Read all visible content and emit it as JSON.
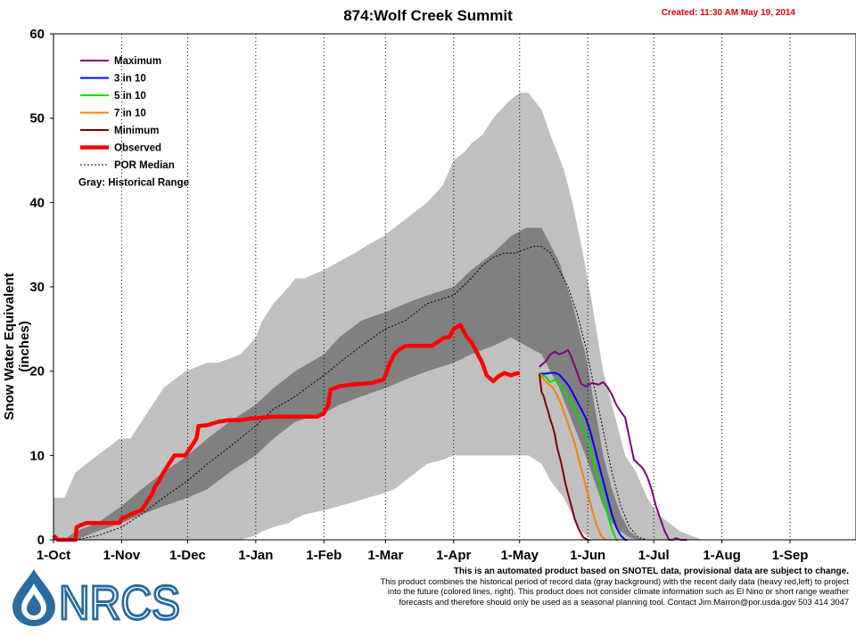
{
  "chart_data": {
    "type": "line",
    "title": "874:Wolf Creek Summit",
    "created": "Created: 11:30 AM May 19, 2014",
    "ylabel": "Snow Water Equivalent (inches)",
    "xlabel": "",
    "ylim": [
      0,
      60
    ],
    "yticks": [
      0,
      10,
      20,
      30,
      40,
      50,
      60
    ],
    "x_unit": "day of water year (1-Oct = 0)",
    "xlim": [
      0,
      365
    ],
    "xticks": [
      {
        "label": "1-Oct",
        "day": 0
      },
      {
        "label": "1-Nov",
        "day": 31
      },
      {
        "label": "1-Dec",
        "day": 61
      },
      {
        "label": "1-Jan",
        "day": 92
      },
      {
        "label": "1-Feb",
        "day": 123
      },
      {
        "label": "1-Mar",
        "day": 151
      },
      {
        "label": "1-Apr",
        "day": 182
      },
      {
        "label": "1-May",
        "day": 212
      },
      {
        "label": "1-Jun",
        "day": 243
      },
      {
        "label": "1-Jul",
        "day": 273
      },
      {
        "label": "1-Aug",
        "day": 304
      },
      {
        "label": "1-Sep",
        "day": 335
      }
    ],
    "grid": "vertical dotted at month starts",
    "legend_position": "top-left",
    "legend": [
      {
        "name": "Maximum",
        "color": "#800080",
        "style": "line"
      },
      {
        "name": "3 in 10",
        "color": "#0000ff",
        "style": "line"
      },
      {
        "name": "5 in 10",
        "color": "#00e000",
        "style": "line"
      },
      {
        "name": "7 in 10",
        "color": "#ff8000",
        "style": "line"
      },
      {
        "name": "Minimum",
        "color": "#800000",
        "style": "line"
      },
      {
        "name": "Observed",
        "color": "#ff0000",
        "style": "thick"
      },
      {
        "name": "POR Median",
        "color": "#000000",
        "style": "dotted"
      }
    ],
    "legend_note": "Gray: Historical Range",
    "range_outer": {
      "color": "#c0c0c0",
      "x": [
        0,
        5,
        10,
        20,
        30,
        35,
        45,
        50,
        60,
        70,
        75,
        85,
        92,
        95,
        100,
        107,
        110,
        114,
        123,
        130,
        137,
        143,
        150,
        155,
        160,
        165,
        170,
        177,
        182,
        187,
        190,
        195,
        200,
        207,
        212,
        216,
        222,
        226,
        232,
        236,
        240,
        245,
        250,
        255,
        260,
        265,
        270,
        275,
        280,
        285,
        290,
        295,
        300,
        303,
        306
      ],
      "lower": [
        0,
        0,
        0,
        0,
        0,
        0,
        0,
        0,
        0,
        0,
        0,
        0,
        0.5,
        1,
        1.5,
        2,
        2.5,
        3,
        3.5,
        4,
        4.5,
        5,
        5.5,
        6,
        7,
        8,
        9,
        9.5,
        10,
        10,
        10,
        10,
        10,
        10,
        10,
        10,
        9,
        7,
        5,
        3,
        1,
        0,
        0,
        0,
        0,
        0,
        0,
        0,
        0,
        0,
        0,
        0,
        0,
        0,
        0
      ],
      "upper": [
        5,
        5,
        8,
        10,
        12,
        12,
        16,
        18,
        20,
        21,
        21,
        22,
        24,
        26,
        28,
        30,
        31,
        31,
        32,
        33,
        34,
        35,
        36,
        37,
        38,
        39,
        40,
        42,
        45,
        46,
        47,
        48,
        50,
        52,
        53,
        53,
        51,
        48,
        44,
        40,
        35,
        28,
        20,
        15,
        10,
        8,
        5,
        3,
        2,
        1,
        0.5,
        0,
        0,
        0,
        0
      ]
    },
    "range_inner": {
      "color": "#808080",
      "x": [
        5,
        10,
        20,
        31,
        40,
        50,
        61,
        70,
        80,
        92,
        100,
        110,
        123,
        130,
        140,
        151,
        160,
        170,
        182,
        190,
        200,
        208,
        215,
        222,
        230,
        236,
        242,
        246,
        250,
        254,
        258,
        262,
        266,
        270
      ],
      "lower": [
        0,
        0,
        1,
        2,
        3,
        4,
        5,
        6,
        8,
        10,
        12,
        14,
        15,
        16,
        17,
        18,
        19,
        20,
        21,
        22,
        23,
        24,
        23,
        22,
        18,
        14,
        10,
        7,
        4,
        2,
        1,
        0.3,
        0,
        0
      ],
      "upper": [
        0,
        1,
        2,
        4,
        6,
        8,
        10,
        12,
        14,
        16,
        18,
        20,
        22,
        24,
        26,
        27,
        28,
        29,
        30,
        32,
        34,
        36,
        37,
        37,
        33,
        28,
        22,
        16,
        10,
        6,
        3,
        1,
        0.2,
        0
      ]
    },
    "series": [
      {
        "name": "Maximum",
        "color": "#800080",
        "x": [
          221,
          224,
          226,
          228,
          230,
          232,
          234,
          235,
          238,
          240,
          242,
          245,
          248,
          250,
          252,
          254,
          256,
          258,
          260,
          262,
          264,
          266,
          268,
          270,
          272,
          274,
          276,
          278,
          280,
          282,
          283,
          285,
          288
        ],
        "y": [
          20.5,
          21.2,
          22,
          22.3,
          22,
          22.2,
          22.5,
          22,
          20,
          18.5,
          18.2,
          18.6,
          18.4,
          18.7,
          18.1,
          17.2,
          16,
          15.2,
          14.5,
          12,
          9.5,
          9,
          8.5,
          7.5,
          6,
          4,
          2.5,
          1,
          0,
          0,
          0.2,
          0,
          0
        ]
      },
      {
        "name": "3 in 10",
        "color": "#0000ff",
        "x": [
          221,
          224,
          226,
          228,
          230,
          232,
          234,
          236,
          238,
          240,
          242,
          244,
          246,
          248,
          250,
          252,
          254,
          256,
          258,
          260,
          261
        ],
        "y": [
          19.7,
          19.7,
          19.8,
          19.8,
          19.6,
          19,
          18.4,
          17.5,
          16.5,
          15.5,
          14.5,
          13,
          11,
          9,
          7,
          5,
          3,
          1.5,
          0.5,
          0,
          0
        ]
      },
      {
        "name": "5 in 10",
        "color": "#00e000",
        "x": [
          221,
          224,
          226,
          228,
          230,
          232,
          234,
          236,
          238,
          240,
          242,
          244,
          246,
          248,
          250,
          252,
          254,
          256,
          257
        ],
        "y": [
          19.7,
          19.3,
          18.7,
          19,
          18.5,
          17.8,
          17,
          16,
          15,
          13.8,
          12.5,
          11,
          9,
          7,
          5,
          3,
          1.3,
          0,
          0
        ]
      },
      {
        "name": "7 in 10",
        "color": "#ff8000",
        "x": [
          221,
          223,
          225,
          227,
          229,
          231,
          233,
          235,
          237,
          239,
          241,
          243,
          245,
          247,
          249,
          251
        ],
        "y": [
          19.7,
          19,
          18.5,
          18.1,
          17.2,
          16,
          14.5,
          13,
          11.5,
          9.5,
          7.5,
          5.5,
          3.5,
          1.8,
          0.5,
          0
        ]
      },
      {
        "name": "Minimum",
        "color": "#800000",
        "x": [
          221,
          222,
          223,
          224,
          225,
          226,
          227,
          228,
          229,
          231,
          233,
          235,
          237,
          239,
          241,
          243,
          244
        ],
        "y": [
          19.7,
          17.5,
          17,
          16,
          15.2,
          14.2,
          13.5,
          12.5,
          11,
          9,
          6.5,
          4.5,
          2.5,
          1.2,
          0.3,
          0,
          0
        ]
      },
      {
        "name": "POR Median",
        "color": "#000000",
        "x": [
          10,
          20,
          31,
          40,
          50,
          61,
          70,
          80,
          92,
          100,
          110,
          115,
          123,
          130,
          140,
          151,
          160,
          170,
          182,
          190,
          195,
          200,
          205,
          210,
          215,
          218,
          222,
          226,
          230,
          234,
          238,
          242,
          246,
          250,
          254,
          258,
          262,
          266,
          270
        ],
        "y": [
          0,
          0.5,
          1.5,
          3,
          5,
          7,
          9,
          11,
          13.5,
          15.5,
          17,
          18,
          19.5,
          21,
          23,
          25,
          26,
          28,
          29,
          31,
          32.5,
          33.5,
          34,
          34,
          34.5,
          34.8,
          34.8,
          34,
          32,
          30,
          27,
          23,
          18,
          13,
          8,
          4,
          1.5,
          0.3,
          0
        ]
      },
      {
        "name": "Observed",
        "color": "#ff0000",
        "x": [
          0,
          2,
          5,
          10,
          10.5,
          12,
          15,
          20,
          25,
          30,
          31,
          35,
          40,
          45,
          46,
          48,
          50,
          55,
          60,
          65,
          66,
          70,
          75,
          80,
          85,
          90,
          92,
          95,
          100,
          110,
          115,
          120,
          123,
          125,
          126,
          130,
          135,
          140,
          145,
          150,
          151,
          153,
          155,
          157,
          160,
          165,
          170,
          172,
          175,
          178,
          180,
          182,
          185,
          188,
          190,
          193,
          195,
          197,
          200,
          202,
          205,
          208,
          210,
          212
        ],
        "y": [
          0.5,
          0,
          0,
          0,
          1.5,
          1.7,
          2,
          2,
          2,
          2,
          2.5,
          3,
          3.5,
          5.5,
          6.2,
          7,
          8,
          10,
          10,
          12,
          13.5,
          13.6,
          14,
          14.2,
          14.2,
          14.4,
          14.4,
          14.5,
          14.6,
          14.6,
          14.6,
          14.6,
          15,
          16,
          17.8,
          18.2,
          18.4,
          18.5,
          18.6,
          19,
          19.5,
          21,
          22,
          22.5,
          23,
          23,
          23,
          23,
          23.5,
          24,
          24,
          25,
          25.5,
          24,
          23.5,
          22,
          21,
          19.5,
          18.8,
          19.3,
          19.8,
          19.5,
          19.7,
          19.8
        ]
      }
    ]
  },
  "disclaimer": {
    "line1": "This is an automated product based on SNOTEL data, provisional data are subject to change.",
    "line2": "This product combines the historical period of record data (gray background) with the recent daily data (heavy red,left) to project",
    "line3": "into the future (colored lines, right). This product does not consider climate information such as El Nino or short range weather",
    "line4": "forecasts and therefore should only be used as a seasonal planning tool. Contact Jim.Marron@por.usda.gov 503 414 3047"
  },
  "logo": {
    "text": "NRCS",
    "color": "#2a6ba0"
  }
}
